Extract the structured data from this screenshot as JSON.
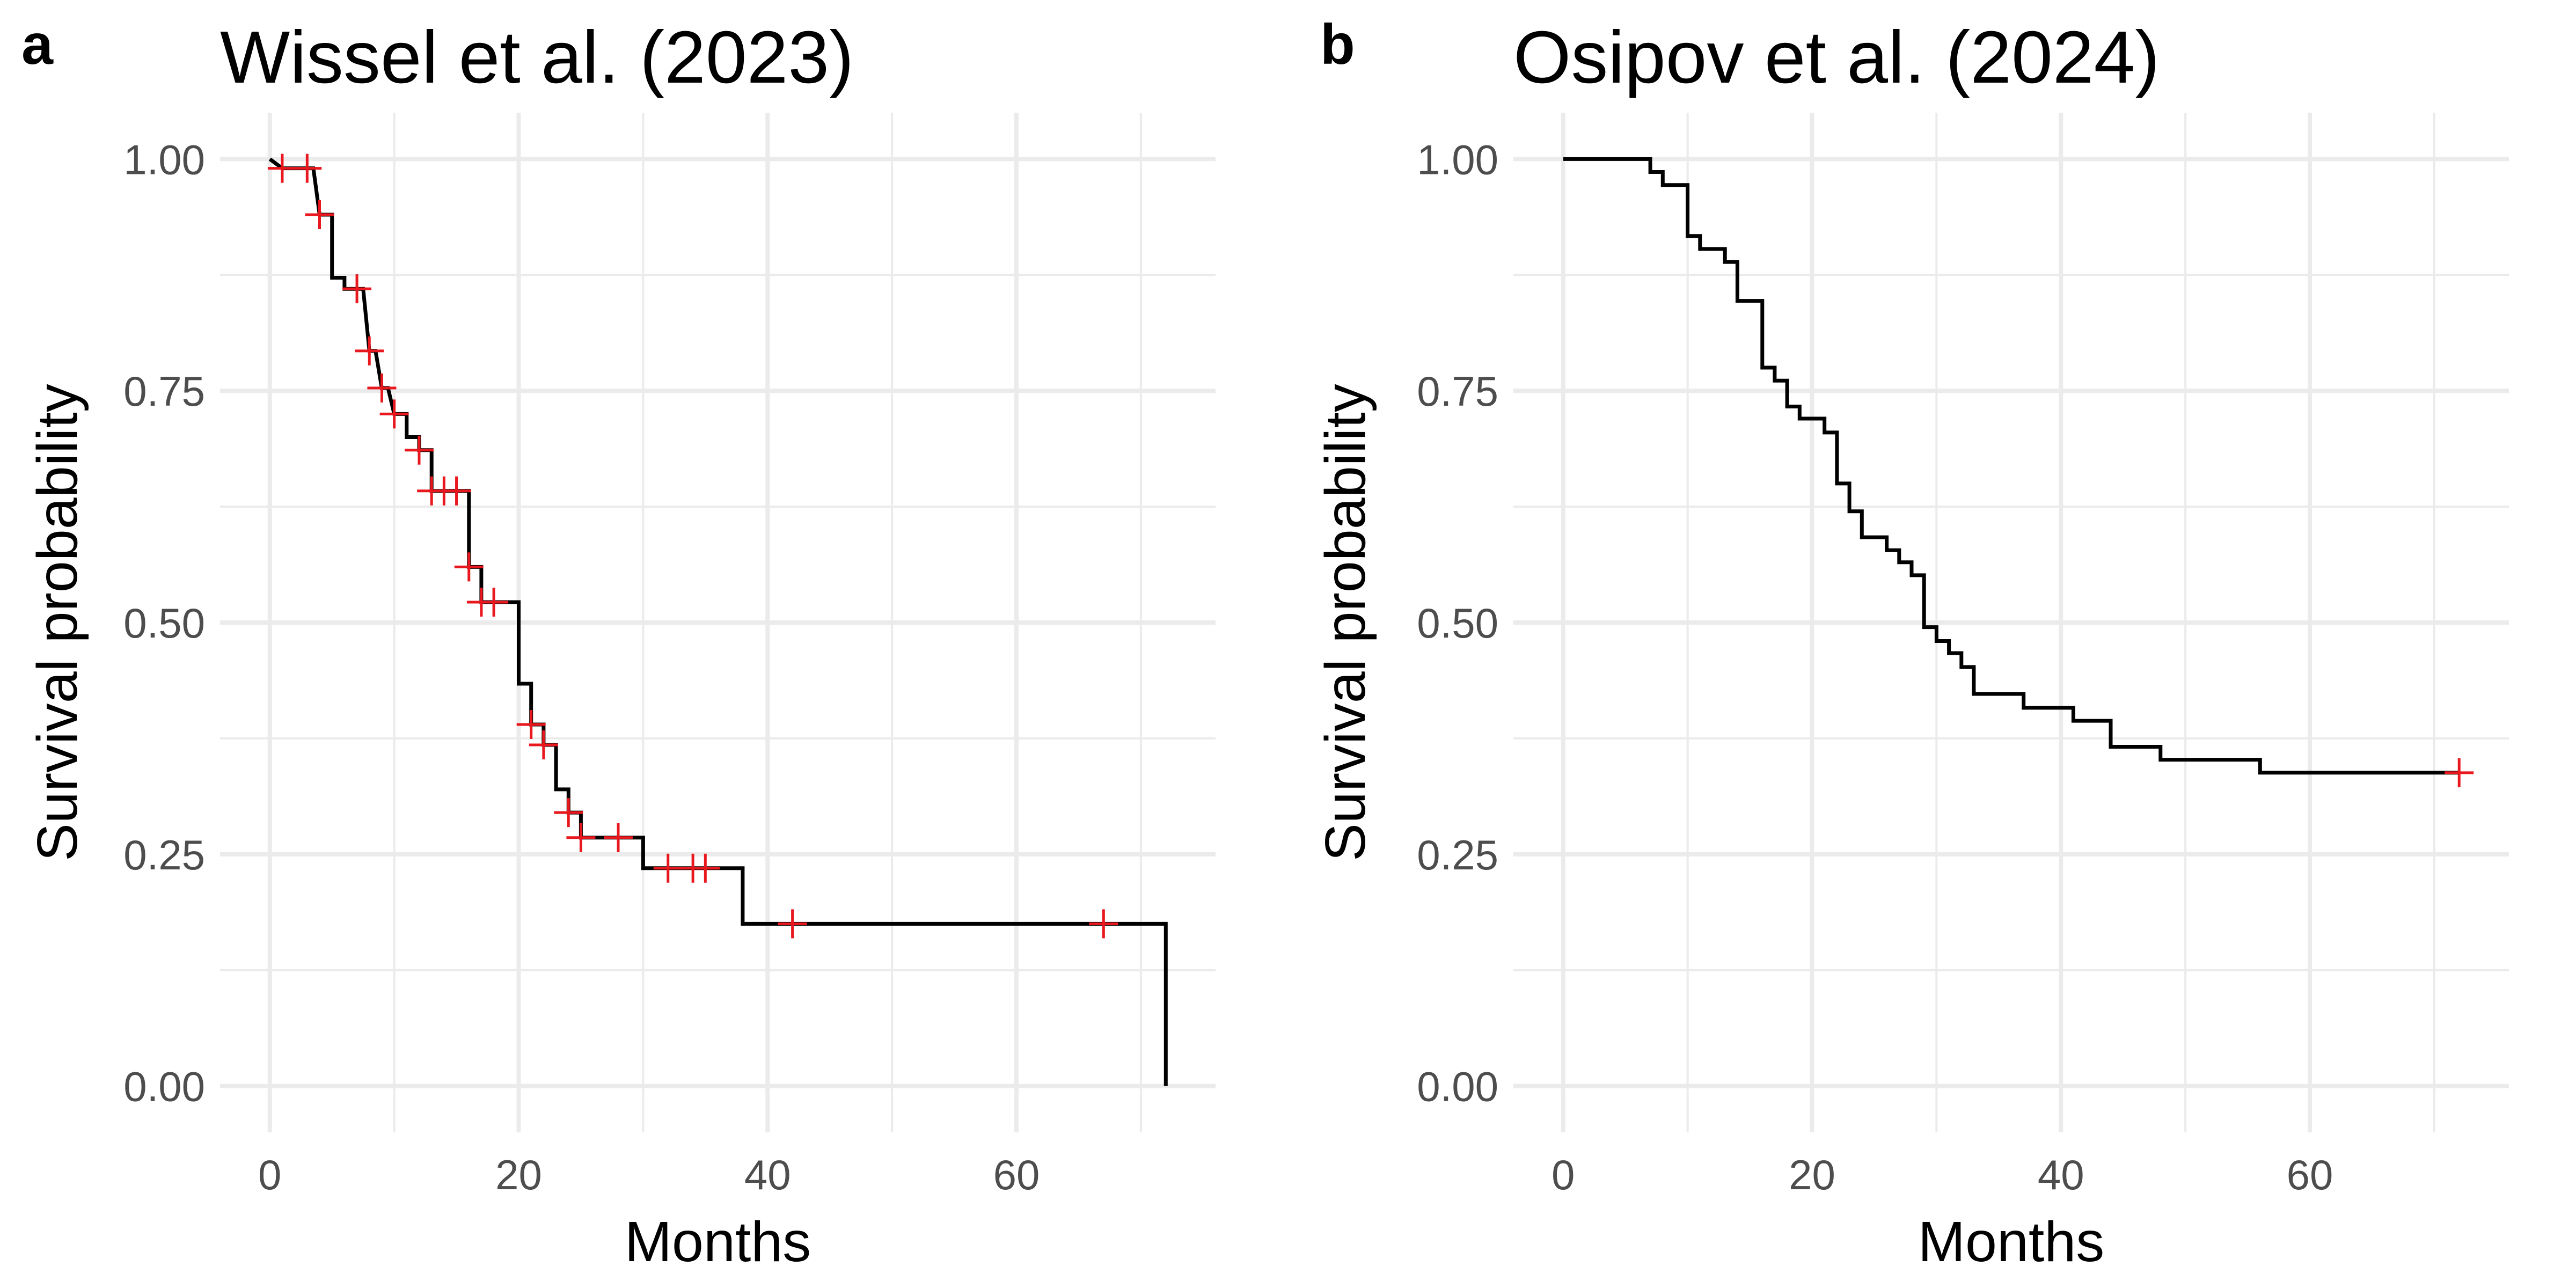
{
  "chart_data": [
    {
      "type": "line",
      "subtype": "kaplan-meier",
      "panel_label": "a",
      "title": "Wissel et al. (2023)",
      "xlabel": "Months",
      "ylabel": "Survival probability",
      "xlim": [
        -4,
        76
      ],
      "ylim": [
        -0.05,
        1.05
      ],
      "xticks": [
        0,
        20,
        40,
        60
      ],
      "xtick_labels": [
        "0",
        "20",
        "40",
        "60"
      ],
      "yticks": [
        0,
        0.25,
        0.5,
        0.75,
        1
      ],
      "ytick_labels": [
        "0.00",
        "0.25",
        "0.50",
        "0.75",
        "1.00"
      ],
      "grid": true,
      "line_color": "#000000",
      "censor_color": "#e8181e",
      "step_points": [
        [
          0,
          1.0
        ],
        [
          1,
          0.99
        ],
        [
          3.5,
          0.99
        ],
        [
          4,
          0.94
        ],
        [
          5,
          0.94
        ],
        [
          5,
          0.872
        ],
        [
          6,
          0.872
        ],
        [
          6,
          0.86
        ],
        [
          7.5,
          0.86
        ],
        [
          8,
          0.793
        ],
        [
          8.5,
          0.793
        ],
        [
          9,
          0.753
        ],
        [
          9.5,
          0.753
        ],
        [
          10,
          0.725
        ],
        [
          11,
          0.725
        ],
        [
          11,
          0.7
        ],
        [
          12,
          0.7
        ],
        [
          12,
          0.686
        ],
        [
          13,
          0.686
        ],
        [
          13,
          0.642
        ],
        [
          16,
          0.642
        ],
        [
          16,
          0.56
        ],
        [
          17,
          0.56
        ],
        [
          17,
          0.522
        ],
        [
          20,
          0.522
        ],
        [
          20,
          0.434
        ],
        [
          21,
          0.434
        ],
        [
          21,
          0.39
        ],
        [
          22,
          0.39
        ],
        [
          22,
          0.368
        ],
        [
          23,
          0.368
        ],
        [
          23,
          0.32
        ],
        [
          24,
          0.32
        ],
        [
          24,
          0.295
        ],
        [
          25,
          0.295
        ],
        [
          25,
          0.268
        ],
        [
          30,
          0.268
        ],
        [
          30,
          0.235
        ],
        [
          38,
          0.235
        ],
        [
          38,
          0.175
        ],
        [
          72,
          0.175
        ],
        [
          72,
          0.0
        ]
      ],
      "censor_marks": [
        [
          1,
          0.99
        ],
        [
          3,
          0.99
        ],
        [
          4,
          0.94
        ],
        [
          7,
          0.86
        ],
        [
          8,
          0.793
        ],
        [
          9,
          0.753
        ],
        [
          10,
          0.725
        ],
        [
          12,
          0.686
        ],
        [
          13,
          0.642
        ],
        [
          14,
          0.642
        ],
        [
          15,
          0.642
        ],
        [
          16,
          0.56
        ],
        [
          17,
          0.522
        ],
        [
          18,
          0.522
        ],
        [
          21,
          0.39
        ],
        [
          22,
          0.368
        ],
        [
          24,
          0.295
        ],
        [
          25,
          0.268
        ],
        [
          28,
          0.268
        ],
        [
          32,
          0.235
        ],
        [
          34,
          0.235
        ],
        [
          35,
          0.235
        ],
        [
          42,
          0.175
        ],
        [
          67,
          0.175
        ]
      ]
    },
    {
      "type": "line",
      "subtype": "kaplan-meier",
      "panel_label": "b",
      "title": "Osipov et al. (2024)",
      "xlabel": "Months",
      "ylabel": "Survival probability",
      "xlim": [
        -4,
        76
      ],
      "ylim": [
        -0.05,
        1.05
      ],
      "xticks": [
        0,
        20,
        40,
        60
      ],
      "xtick_labels": [
        "0",
        "20",
        "40",
        "60"
      ],
      "yticks": [
        0,
        0.25,
        0.5,
        0.75,
        1
      ],
      "ytick_labels": [
        "0.00",
        "0.25",
        "0.50",
        "0.75",
        "1.00"
      ],
      "grid": true,
      "line_color": "#000000",
      "censor_color": "#e8181e",
      "step_points": [
        [
          0,
          1.0
        ],
        [
          7,
          1.0
        ],
        [
          7,
          0.986
        ],
        [
          8,
          0.986
        ],
        [
          8,
          0.972
        ],
        [
          10,
          0.972
        ],
        [
          10,
          0.917
        ],
        [
          11,
          0.917
        ],
        [
          11,
          0.903
        ],
        [
          13,
          0.903
        ],
        [
          13,
          0.889
        ],
        [
          14,
          0.889
        ],
        [
          14,
          0.847
        ],
        [
          16,
          0.847
        ],
        [
          16,
          0.775
        ],
        [
          17,
          0.775
        ],
        [
          17,
          0.761
        ],
        [
          18,
          0.761
        ],
        [
          18,
          0.733
        ],
        [
          19,
          0.733
        ],
        [
          19,
          0.72
        ],
        [
          21,
          0.72
        ],
        [
          21,
          0.705
        ],
        [
          22,
          0.705
        ],
        [
          22,
          0.65
        ],
        [
          23,
          0.65
        ],
        [
          23,
          0.62
        ],
        [
          24,
          0.62
        ],
        [
          24,
          0.592
        ],
        [
          26,
          0.592
        ],
        [
          26,
          0.578
        ],
        [
          27,
          0.578
        ],
        [
          27,
          0.565
        ],
        [
          28,
          0.565
        ],
        [
          28,
          0.551
        ],
        [
          29,
          0.551
        ],
        [
          29,
          0.495
        ],
        [
          30,
          0.495
        ],
        [
          30,
          0.48
        ],
        [
          31,
          0.48
        ],
        [
          31,
          0.467
        ],
        [
          32,
          0.467
        ],
        [
          32,
          0.452
        ],
        [
          33,
          0.452
        ],
        [
          33,
          0.423
        ],
        [
          37,
          0.423
        ],
        [
          37,
          0.408
        ],
        [
          41,
          0.408
        ],
        [
          41,
          0.394
        ],
        [
          44,
          0.394
        ],
        [
          44,
          0.366
        ],
        [
          48,
          0.366
        ],
        [
          48,
          0.352
        ],
        [
          56,
          0.352
        ],
        [
          56,
          0.338
        ],
        [
          72,
          0.338
        ]
      ],
      "censor_marks": [
        [
          72,
          0.338
        ]
      ]
    }
  ]
}
